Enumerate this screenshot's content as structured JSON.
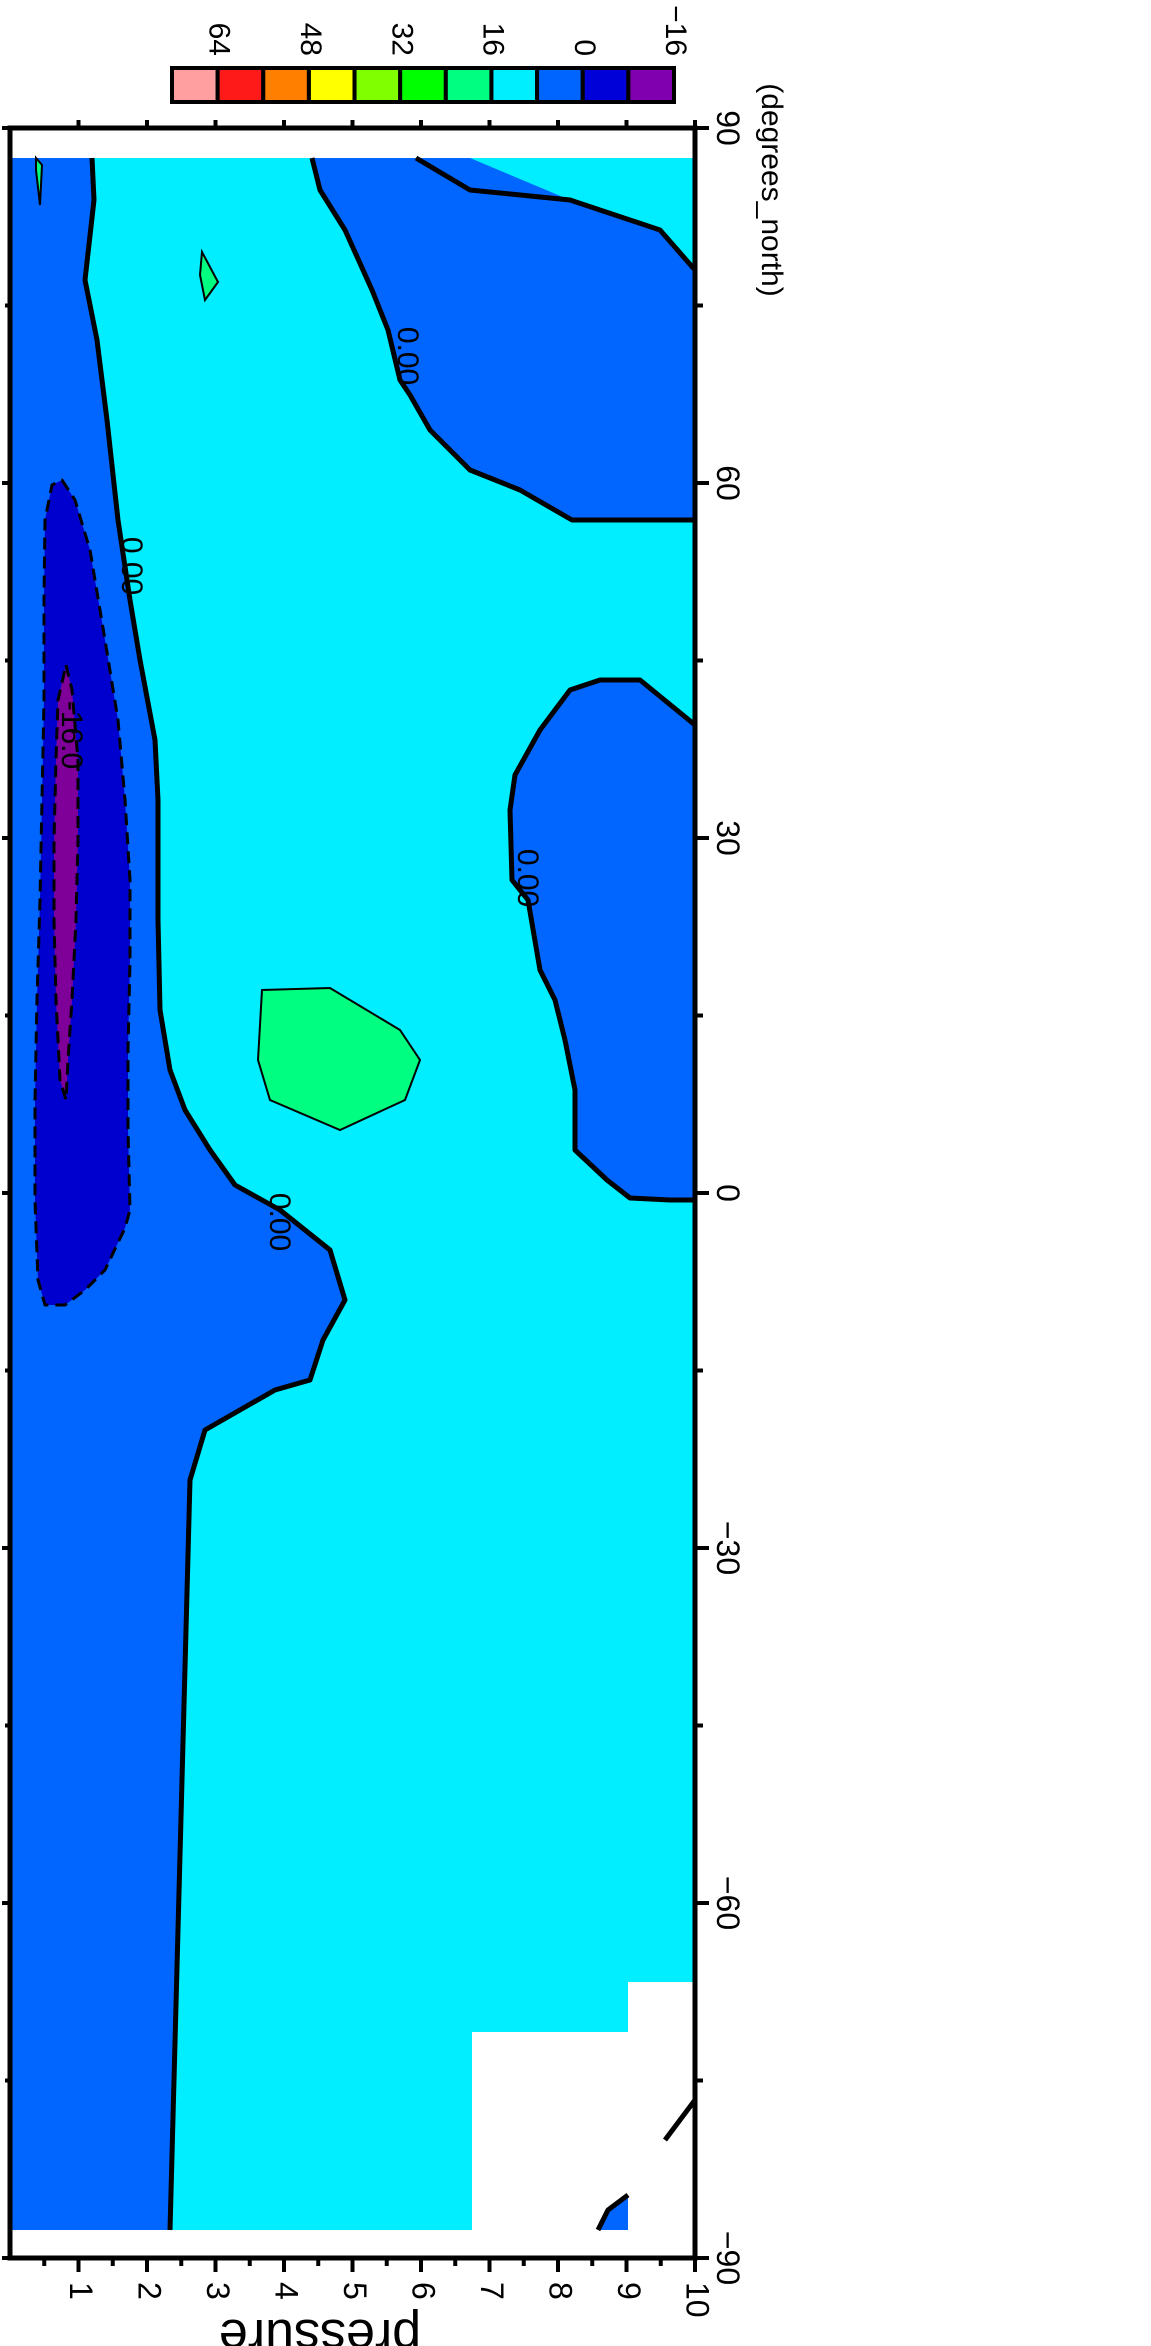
{
  "chart_data": {
    "type": "filled-contour",
    "orientation": "rotated-90-clockwise",
    "xlabel": "(degrees_north)",
    "ylabel": "pressure",
    "xlim": [
      -90,
      90
    ],
    "ylim": [
      10,
      0
    ],
    "x_ticks": [
      "−90",
      "−60",
      "−30",
      "0",
      "30",
      "60",
      "90"
    ],
    "y_ticks": [
      "1",
      "2",
      "3",
      "4",
      "5",
      "6",
      "7",
      "8",
      "9",
      "10"
    ],
    "colorbar": {
      "levels": [
        "64",
        "48",
        "32",
        "16",
        "0",
        "−16"
      ],
      "colors": [
        "#ff9f9f",
        "#ff1a1a",
        "#ff7f00",
        "#ffff00",
        "#80ff00",
        "#00ff00",
        "#00ff80",
        "#00efff",
        "#0064ff",
        "#0000d8",
        "#8000b0"
      ]
    },
    "field_colors": {
      "below_minus_16": "#7f0099",
      "minus_16_to_minus_8": "#0000ce",
      "minus_8_to_0": "#0066ff",
      "0_to_8": "#00eeff",
      "8_to_16": "#00ff80"
    },
    "contour_labels": [
      "0.00",
      "0.00",
      "0.00",
      "0.00",
      "-16.0"
    ],
    "missing_region": "white"
  }
}
